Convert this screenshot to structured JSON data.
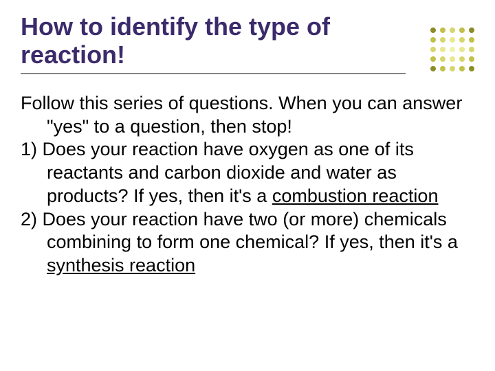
{
  "title": "How to identify the type of reaction!",
  "intro": "Follow this series of questions. When you can answer \"yes\" to a question, then stop!",
  "item1_pre": "1)  Does your reaction have oxygen as one of its reactants and carbon dioxide and water as products? If yes, then it's a ",
  "item1_u": "combustion reaction",
  "item2_pre": "2)  Does your reaction have two (or more) chemicals combining to form one chemical? If yes, then it's a ",
  "item2_u": "synthesis reaction",
  "colors": {
    "title": "#3b2b6b",
    "text": "#000000",
    "background": "#ffffff"
  },
  "dot_grid": {
    "rows": 5,
    "cols": 5,
    "colors": [
      [
        "#8c8c27",
        "#c0c04a",
        "#d6d66e",
        "#c0c04a",
        "#8c8c27"
      ],
      [
        "#c0c04a",
        "#d6d66e",
        "#e8e88f",
        "#d6d66e",
        "#c0c04a"
      ],
      [
        "#d6d66e",
        "#e8e88f",
        "#f2f2b0",
        "#e8e88f",
        "#d6d66e"
      ],
      [
        "#c0c04a",
        "#d6d66e",
        "#e8e88f",
        "#d6d66e",
        "#c0c04a"
      ],
      [
        "#8c8c27",
        "#c0c04a",
        "#d6d66e",
        "#c0c04a",
        "#8c8c27"
      ]
    ]
  }
}
